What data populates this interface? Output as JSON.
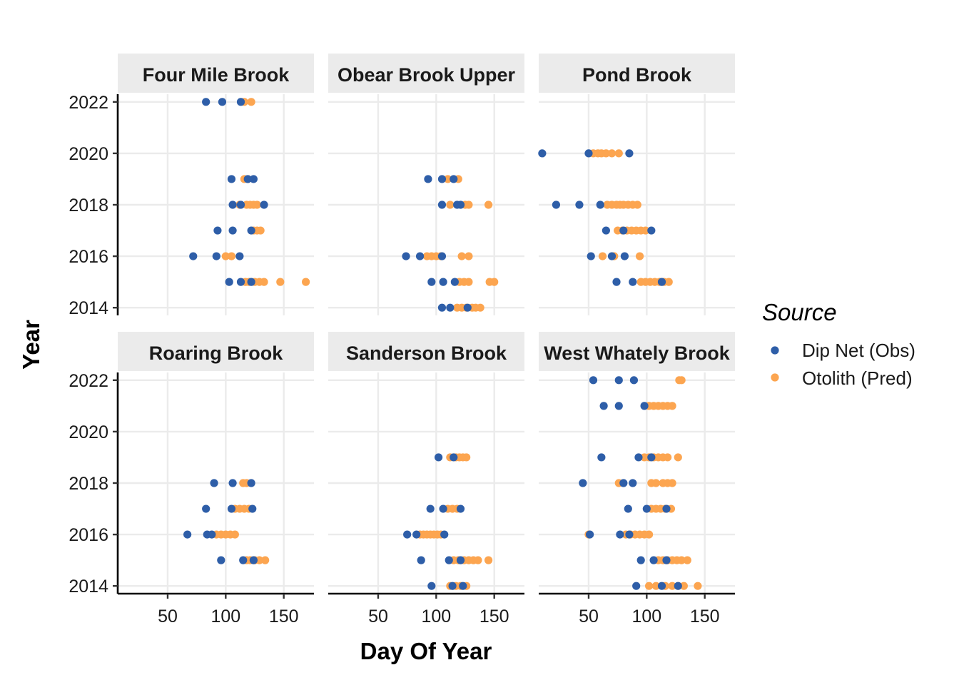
{
  "chart_data": {
    "type": "scatter",
    "xlabel": "Day Of Year",
    "ylabel": "Year",
    "xlim": [
      7,
      176
    ],
    "ylim": [
      2013.7,
      2022.3
    ],
    "x_ticks": [
      50,
      100,
      150
    ],
    "y_ticks": [
      2014,
      2016,
      2018,
      2020,
      2022
    ],
    "grid": true,
    "legend": {
      "title": "Source",
      "position": "right",
      "entries": [
        {
          "name": "Dip Net (Obs)",
          "color": "#2E5EA8"
        },
        {
          "name": "Otolith (Pred)",
          "color": "#FCA550"
        }
      ]
    },
    "panels": [
      {
        "name": "Four Mile Brook",
        "obs": [
          [
            83,
            2022
          ],
          [
            97,
            2022
          ],
          [
            113,
            2022
          ],
          [
            105,
            2019
          ],
          [
            124,
            2019
          ],
          [
            119,
            2019
          ],
          [
            106,
            2018
          ],
          [
            113,
            2018
          ],
          [
            133,
            2018
          ],
          [
            93,
            2017
          ],
          [
            106,
            2017
          ],
          [
            122,
            2017
          ],
          [
            72,
            2016
          ],
          [
            92,
            2016
          ],
          [
            112,
            2016
          ],
          [
            103,
            2015
          ],
          [
            113,
            2015
          ],
          [
            122,
            2015
          ]
        ],
        "pred": [
          [
            116,
            2022
          ],
          [
            122,
            2022
          ],
          [
            116,
            2019
          ],
          [
            119,
            2019
          ],
          [
            112,
            2018
          ],
          [
            118,
            2018
          ],
          [
            121,
            2018
          ],
          [
            124,
            2018
          ],
          [
            127,
            2018
          ],
          [
            124,
            2017
          ],
          [
            127,
            2017
          ],
          [
            130,
            2017
          ],
          [
            100,
            2016
          ],
          [
            105,
            2016
          ],
          [
            117,
            2015
          ],
          [
            120,
            2015
          ],
          [
            125,
            2015
          ],
          [
            129,
            2015
          ],
          [
            133,
            2015
          ],
          [
            147,
            2015
          ],
          [
            169,
            2015
          ]
        ]
      },
      {
        "name": "Obear Brook Upper",
        "obs": [
          [
            93,
            2019
          ],
          [
            105,
            2019
          ],
          [
            115,
            2019
          ],
          [
            105,
            2018
          ],
          [
            118,
            2018
          ],
          [
            121,
            2018
          ],
          [
            74,
            2016
          ],
          [
            86,
            2016
          ],
          [
            105,
            2016
          ],
          [
            96,
            2015
          ],
          [
            106,
            2015
          ],
          [
            116,
            2015
          ],
          [
            105,
            2014
          ],
          [
            112,
            2014
          ],
          [
            127,
            2014
          ]
        ],
        "pred": [
          [
            110,
            2019
          ],
          [
            119,
            2019
          ],
          [
            112,
            2018
          ],
          [
            125,
            2018
          ],
          [
            128,
            2018
          ],
          [
            145,
            2018
          ],
          [
            92,
            2016
          ],
          [
            96,
            2016
          ],
          [
            100,
            2016
          ],
          [
            104,
            2016
          ],
          [
            122,
            2016
          ],
          [
            128,
            2016
          ],
          [
            120,
            2015
          ],
          [
            124,
            2015
          ],
          [
            128,
            2015
          ],
          [
            146,
            2015
          ],
          [
            150,
            2015
          ],
          [
            118,
            2014
          ],
          [
            122,
            2014
          ],
          [
            126,
            2014
          ],
          [
            131,
            2014
          ],
          [
            134,
            2014
          ],
          [
            138,
            2014
          ]
        ]
      },
      {
        "name": "Pond Brook",
        "obs": [
          [
            10,
            2020
          ],
          [
            50,
            2020
          ],
          [
            85,
            2020
          ],
          [
            22,
            2018
          ],
          [
            42,
            2018
          ],
          [
            60,
            2018
          ],
          [
            65,
            2017
          ],
          [
            80,
            2017
          ],
          [
            104,
            2017
          ],
          [
            52,
            2016
          ],
          [
            70,
            2016
          ],
          [
            81,
            2016
          ],
          [
            74,
            2015
          ],
          [
            88,
            2015
          ],
          [
            113,
            2015
          ]
        ],
        "pred": [
          [
            54,
            2020
          ],
          [
            58,
            2020
          ],
          [
            61,
            2020
          ],
          [
            65,
            2020
          ],
          [
            70,
            2020
          ],
          [
            76,
            2020
          ],
          [
            66,
            2018
          ],
          [
            70,
            2018
          ],
          [
            74,
            2018
          ],
          [
            77,
            2018
          ],
          [
            80,
            2018
          ],
          [
            84,
            2018
          ],
          [
            88,
            2018
          ],
          [
            92,
            2018
          ],
          [
            75,
            2017
          ],
          [
            79,
            2017
          ],
          [
            83,
            2017
          ],
          [
            87,
            2017
          ],
          [
            91,
            2017
          ],
          [
            95,
            2017
          ],
          [
            99,
            2017
          ],
          [
            62,
            2016
          ],
          [
            72,
            2016
          ],
          [
            94,
            2016
          ],
          [
            95,
            2015
          ],
          [
            99,
            2015
          ],
          [
            103,
            2015
          ],
          [
            107,
            2015
          ],
          [
            111,
            2015
          ],
          [
            115,
            2015
          ],
          [
            119,
            2015
          ]
        ]
      },
      {
        "name": "Roaring Brook",
        "obs": [
          [
            90,
            2018
          ],
          [
            106,
            2018
          ],
          [
            122,
            2018
          ],
          [
            83,
            2017
          ],
          [
            105,
            2017
          ],
          [
            123,
            2017
          ],
          [
            67,
            2016
          ],
          [
            84,
            2016
          ],
          [
            88,
            2016
          ],
          [
            96,
            2015
          ],
          [
            115,
            2015
          ],
          [
            124,
            2015
          ]
        ],
        "pred": [
          [
            115,
            2018
          ],
          [
            118,
            2018
          ],
          [
            108,
            2017
          ],
          [
            112,
            2017
          ],
          [
            116,
            2017
          ],
          [
            120,
            2017
          ],
          [
            92,
            2016
          ],
          [
            96,
            2016
          ],
          [
            100,
            2016
          ],
          [
            104,
            2016
          ],
          [
            108,
            2016
          ],
          [
            118,
            2015
          ],
          [
            121,
            2015
          ],
          [
            125,
            2015
          ],
          [
            129,
            2015
          ],
          [
            134,
            2015
          ]
        ]
      },
      {
        "name": "Sanderson Brook",
        "obs": [
          [
            102,
            2019
          ],
          [
            115,
            2019
          ],
          [
            95,
            2017
          ],
          [
            106,
            2017
          ],
          [
            121,
            2017
          ],
          [
            75,
            2016
          ],
          [
            83,
            2016
          ],
          [
            107,
            2016
          ],
          [
            87,
            2015
          ],
          [
            111,
            2015
          ],
          [
            121,
            2015
          ],
          [
            96,
            2014
          ],
          [
            114,
            2014
          ],
          [
            123,
            2014
          ]
        ],
        "pred": [
          [
            112,
            2019
          ],
          [
            117,
            2019
          ],
          [
            120,
            2019
          ],
          [
            123,
            2019
          ],
          [
            126,
            2019
          ],
          [
            110,
            2017
          ],
          [
            114,
            2017
          ],
          [
            118,
            2017
          ],
          [
            86,
            2016
          ],
          [
            89,
            2016
          ],
          [
            92,
            2016
          ],
          [
            95,
            2016
          ],
          [
            98,
            2016
          ],
          [
            101,
            2016
          ],
          [
            104,
            2016
          ],
          [
            115,
            2015
          ],
          [
            119,
            2015
          ],
          [
            124,
            2015
          ],
          [
            128,
            2015
          ],
          [
            132,
            2015
          ],
          [
            136,
            2015
          ],
          [
            145,
            2015
          ],
          [
            112,
            2014
          ],
          [
            117,
            2014
          ],
          [
            121,
            2014
          ],
          [
            126,
            2014
          ]
        ]
      },
      {
        "name": "West Whately Brook",
        "obs": [
          [
            54,
            2022
          ],
          [
            76,
            2022
          ],
          [
            89,
            2022
          ],
          [
            63,
            2021
          ],
          [
            76,
            2021
          ],
          [
            98,
            2021
          ],
          [
            61,
            2019
          ],
          [
            93,
            2019
          ],
          [
            104,
            2019
          ],
          [
            45,
            2018
          ],
          [
            80,
            2018
          ],
          [
            88,
            2018
          ],
          [
            84,
            2017
          ],
          [
            100,
            2017
          ],
          [
            117,
            2017
          ],
          [
            51,
            2016
          ],
          [
            77,
            2016
          ],
          [
            85,
            2016
          ],
          [
            95,
            2015
          ],
          [
            106,
            2015
          ],
          [
            117,
            2015
          ],
          [
            91,
            2014
          ],
          [
            113,
            2014
          ],
          [
            127,
            2014
          ]
        ],
        "pred": [
          [
            128,
            2022
          ],
          [
            130,
            2022
          ],
          [
            102,
            2021
          ],
          [
            106,
            2021
          ],
          [
            110,
            2021
          ],
          [
            114,
            2021
          ],
          [
            118,
            2021
          ],
          [
            122,
            2021
          ],
          [
            98,
            2019
          ],
          [
            102,
            2019
          ],
          [
            106,
            2019
          ],
          [
            110,
            2019
          ],
          [
            114,
            2019
          ],
          [
            118,
            2019
          ],
          [
            127,
            2019
          ],
          [
            76,
            2018
          ],
          [
            104,
            2018
          ],
          [
            108,
            2018
          ],
          [
            114,
            2018
          ],
          [
            118,
            2018
          ],
          [
            122,
            2018
          ],
          [
            104,
            2017
          ],
          [
            108,
            2017
          ],
          [
            112,
            2017
          ],
          [
            116,
            2017
          ],
          [
            121,
            2017
          ],
          [
            50,
            2016
          ],
          [
            82,
            2016
          ],
          [
            86,
            2016
          ],
          [
            90,
            2016
          ],
          [
            94,
            2016
          ],
          [
            98,
            2016
          ],
          [
            102,
            2016
          ],
          [
            110,
            2015
          ],
          [
            114,
            2015
          ],
          [
            118,
            2015
          ],
          [
            122,
            2015
          ],
          [
            126,
            2015
          ],
          [
            130,
            2015
          ],
          [
            135,
            2015
          ],
          [
            102,
            2014
          ],
          [
            108,
            2014
          ],
          [
            116,
            2014
          ],
          [
            122,
            2014
          ],
          [
            127,
            2014
          ],
          [
            132,
            2014
          ],
          [
            144,
            2014
          ]
        ]
      }
    ]
  }
}
